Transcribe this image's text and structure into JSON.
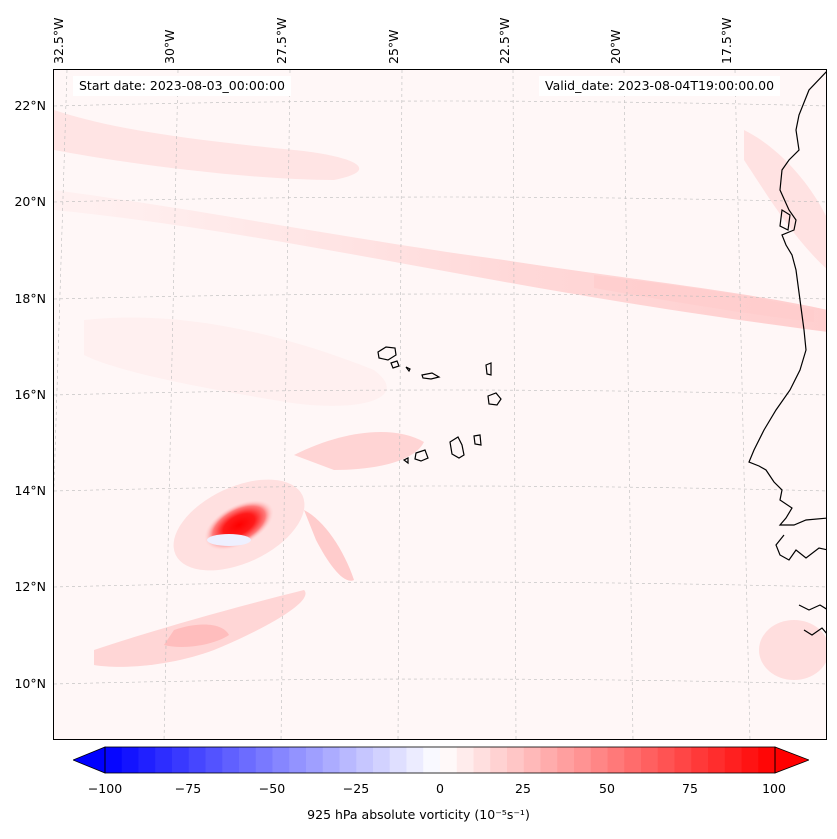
{
  "info": {
    "start_date": "Start date: 2023-08-03_00:00:00",
    "valid_date": "Valid_date: 2023-08-04T19:00:00.00"
  },
  "axes": {
    "longitude_labels": [
      "32.5°W",
      "30°W",
      "27.5°W",
      "25°W",
      "22.5°W",
      "20°W",
      "17.5°W"
    ],
    "latitude_labels": [
      "22°N",
      "20°N",
      "18°N",
      "16°N",
      "14°N",
      "12°N",
      "10°N"
    ]
  },
  "colorbar": {
    "min": -100,
    "max": 100,
    "ticks": [
      "−100",
      "−75",
      "−50",
      "−25",
      "0",
      "25",
      "50",
      "75",
      "100"
    ],
    "label": "925 hPa absolute vorticity (10⁻⁵s⁻¹)",
    "low_color": "#0000ff",
    "mid_color": "#ffffff",
    "high_color": "#ff0000"
  },
  "map": {
    "background_color": "#fff7f7",
    "coastline_color": "#000000",
    "gridline_color": "#bbbbbb"
  }
}
